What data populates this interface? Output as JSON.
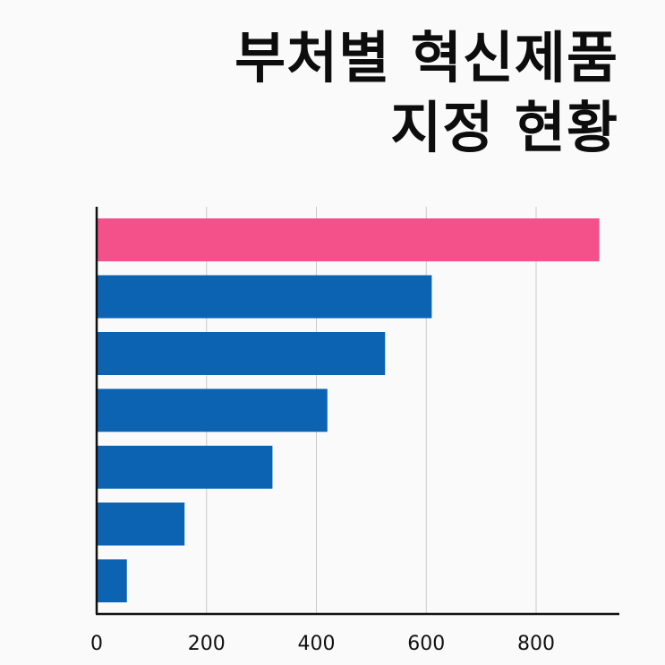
{
  "title": {
    "line1": "부처별 혁신제품",
    "line2": "지정 현황"
  },
  "chart_data": {
    "type": "bar",
    "orientation": "horizontal",
    "title": "부처별 혁신제품 지정 현황",
    "xlabel": "",
    "ylabel": "",
    "xlim": [
      0,
      950
    ],
    "ticks": [
      0,
      200,
      400,
      600,
      800
    ],
    "tick_labels": [
      "0",
      "200",
      "400",
      "600",
      "800"
    ],
    "categories": [
      "",
      "",
      "",
      "",
      "",
      "",
      ""
    ],
    "values": [
      915,
      610,
      525,
      420,
      320,
      160,
      55
    ],
    "highlight_color": "#f4508a",
    "bar_color": "#0c63b2",
    "gridlines": true,
    "legend": false
  }
}
